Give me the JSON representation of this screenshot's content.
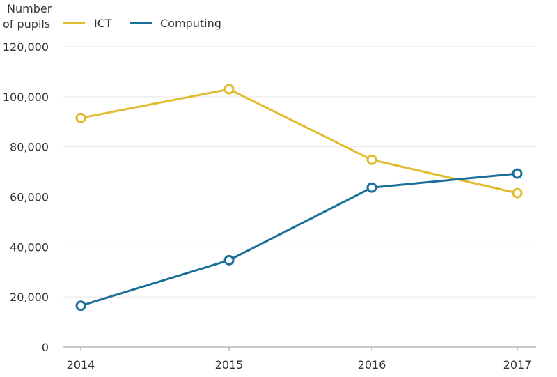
{
  "chart_data": {
    "type": "line",
    "ylabel": [
      "Number",
      "of pupils"
    ],
    "x": [
      "2014",
      "2015",
      "2016",
      "2017"
    ],
    "ylim": [
      0,
      120000
    ],
    "yticks": [
      0,
      20000,
      40000,
      60000,
      80000,
      100000,
      120000
    ],
    "ytick_labels": [
      "0",
      "20,000",
      "40,000",
      "60,000",
      "80,000",
      "100,000",
      "120,000"
    ],
    "grid": true,
    "legend": "top",
    "series": [
      {
        "name": "ICT",
        "color": "#e0bb2e",
        "values": [
          91500,
          103000,
          74800,
          61500
        ]
      },
      {
        "name": "Computing",
        "color": "#1a6f9a",
        "values": [
          16500,
          34700,
          63700,
          69300
        ]
      }
    ]
  }
}
